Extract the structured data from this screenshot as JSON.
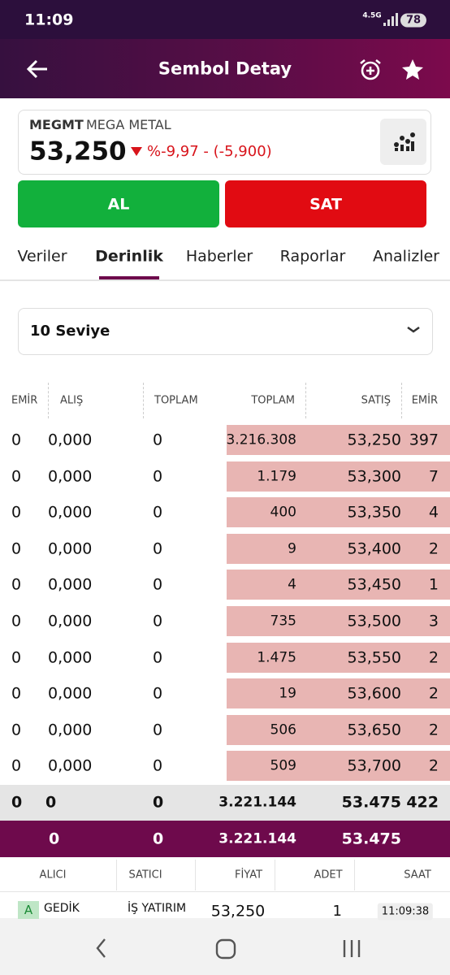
{
  "status_bar": {
    "time": "11:09",
    "network": "4.5G",
    "battery": "78"
  },
  "header": {
    "title": "Sembol Detay"
  },
  "symbol": {
    "code": "MEGMT",
    "name": "MEGA METAL",
    "price": "53,250",
    "change": "%-9,97 - (-5,900)"
  },
  "buttons": {
    "buy": "AL",
    "sell": "SAT"
  },
  "tabs": [
    "Veriler",
    "Derinlik",
    "Haberler",
    "Raporlar",
    "Analizler"
  ],
  "active_tab": 1,
  "dropdown": "10 Seviye",
  "depth": {
    "columns": [
      "EMİR",
      "ALIŞ",
      "TOPLAM",
      "TOPLAM",
      "SATIŞ",
      "EMİR"
    ],
    "rows": [
      [
        "0",
        "0,000",
        "0",
        "3.216.308",
        "53,250",
        "397"
      ],
      [
        "0",
        "0,000",
        "0",
        "1.179",
        "53,300",
        "7"
      ],
      [
        "0",
        "0,000",
        "0",
        "400",
        "53,350",
        "4"
      ],
      [
        "0",
        "0,000",
        "0",
        "9",
        "53,400",
        "2"
      ],
      [
        "0",
        "0,000",
        "0",
        "4",
        "53,450",
        "1"
      ],
      [
        "0",
        "0,000",
        "0",
        "735",
        "53,500",
        "3"
      ],
      [
        "0",
        "0,000",
        "0",
        "1.475",
        "53,550",
        "2"
      ],
      [
        "0",
        "0,000",
        "0",
        "19",
        "53,600",
        "2"
      ],
      [
        "0",
        "0,000",
        "0",
        "506",
        "53,650",
        "2"
      ],
      [
        "0",
        "0,000",
        "0",
        "509",
        "53,700",
        "2"
      ]
    ],
    "total": [
      "0",
      "0",
      "0",
      "3.221.144",
      "53.475",
      "422"
    ],
    "summary": [
      "0",
      "0",
      "3.221.144",
      "53.475"
    ]
  },
  "trades": {
    "columns": [
      "ALICI",
      "SATICI",
      "FİYAT",
      "ADET",
      "SAAT"
    ],
    "rows": [
      {
        "badge": "A",
        "buyer": "GEDİK",
        "seller": "İŞ YATIRIM",
        "price": "53,250",
        "qty": "1",
        "time": "11:09:38"
      }
    ]
  }
}
